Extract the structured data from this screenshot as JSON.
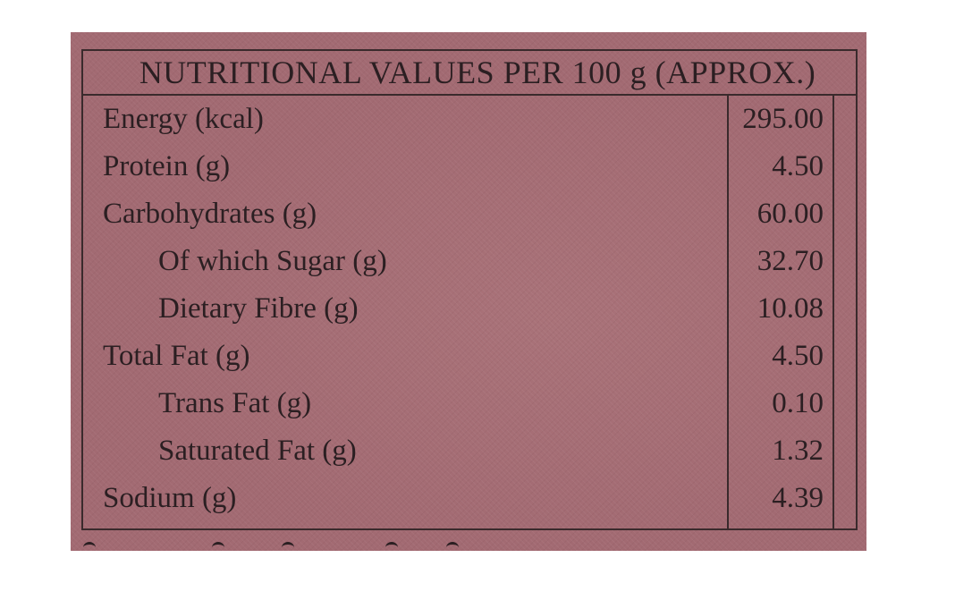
{
  "table": {
    "heading": "NUTRITIONAL VALUES PER 100 g (APPROX.)",
    "rows": [
      {
        "name": "Energy (kcal)",
        "value": "295.00",
        "indent": false
      },
      {
        "name": "Protein (g)",
        "value": "4.50",
        "indent": false
      },
      {
        "name": "Carbohydrates (g)",
        "value": "60.00",
        "indent": false
      },
      {
        "name": "Of which Sugar (g)",
        "value": "32.70",
        "indent": true
      },
      {
        "name": "Dietary Fibre (g)",
        "value": "10.08",
        "indent": true
      },
      {
        "name": "Total Fat (g)",
        "value": "4.50",
        "indent": false
      },
      {
        "name": "Trans Fat (g)",
        "value": "0.10",
        "indent": true
      },
      {
        "name": "Saturated Fat (g)",
        "value": "1.32",
        "indent": true
      },
      {
        "name": "Sodium (g)",
        "value": "4.39",
        "indent": false
      }
    ]
  },
  "colors": {
    "background": "#a26a72",
    "ink": "#2b1f22",
    "border": "#3a2a2c"
  }
}
